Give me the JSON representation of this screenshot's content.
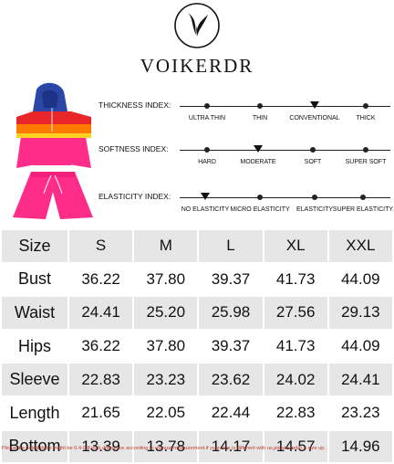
{
  "brand": {
    "name": "VOIKERDR",
    "logo": "feather-swirl-logo"
  },
  "product": {
    "image": "pink-hoodie-shorts-set",
    "colors": {
      "hood": "#2a47a8",
      "body": "#ff2d8a",
      "stripe_red": "#e8262a",
      "stripe_orange": "#ff7a00",
      "stripe_yellow": "#ffd21f"
    }
  },
  "indexes": [
    {
      "title": "THICKNESS INDEX:",
      "options": [
        "ULTRA THIN",
        "THIN",
        "CONVENTIONAL",
        "THICK"
      ],
      "selected": 2
    },
    {
      "title": "SOFTNESS INDEX:",
      "options": [
        "HARD",
        "MODERATE",
        "SOFT",
        "SUPER SOFT"
      ],
      "selected": 1
    },
    {
      "title": "ELASTICITY INDEX:",
      "options": [
        "NO ELASTICITY",
        "MICRO ELASTICITY",
        "ELASTICITY",
        "SUPER ELASTICITY"
      ],
      "selected": 0
    }
  ],
  "size_table": {
    "header": [
      "Size",
      "S",
      "M",
      "L",
      "XL",
      "XXL"
    ],
    "rows": [
      [
        "Bust",
        "36.22",
        "37.80",
        "39.37",
        "41.73",
        "44.09"
      ],
      [
        "Waist",
        "24.41",
        "25.20",
        "25.98",
        "27.56",
        "29.13"
      ],
      [
        "Hips",
        "36.22",
        "37.80",
        "39.37",
        "41.73",
        "44.09"
      ],
      [
        "Sleeve",
        "22.83",
        "23.23",
        "23.62",
        "24.02",
        "24.41"
      ],
      [
        "Length",
        "21.65",
        "22.05",
        "22.44",
        "22.83",
        "23.23"
      ],
      [
        "Bottom",
        "13.39",
        "13.78",
        "14.17",
        "14.57",
        "14.96"
      ]
    ]
  },
  "footnote": "Please be noted there might be 0.4-0.8 inch difference according to manual measurement.if your size is different with us,please order a size up."
}
